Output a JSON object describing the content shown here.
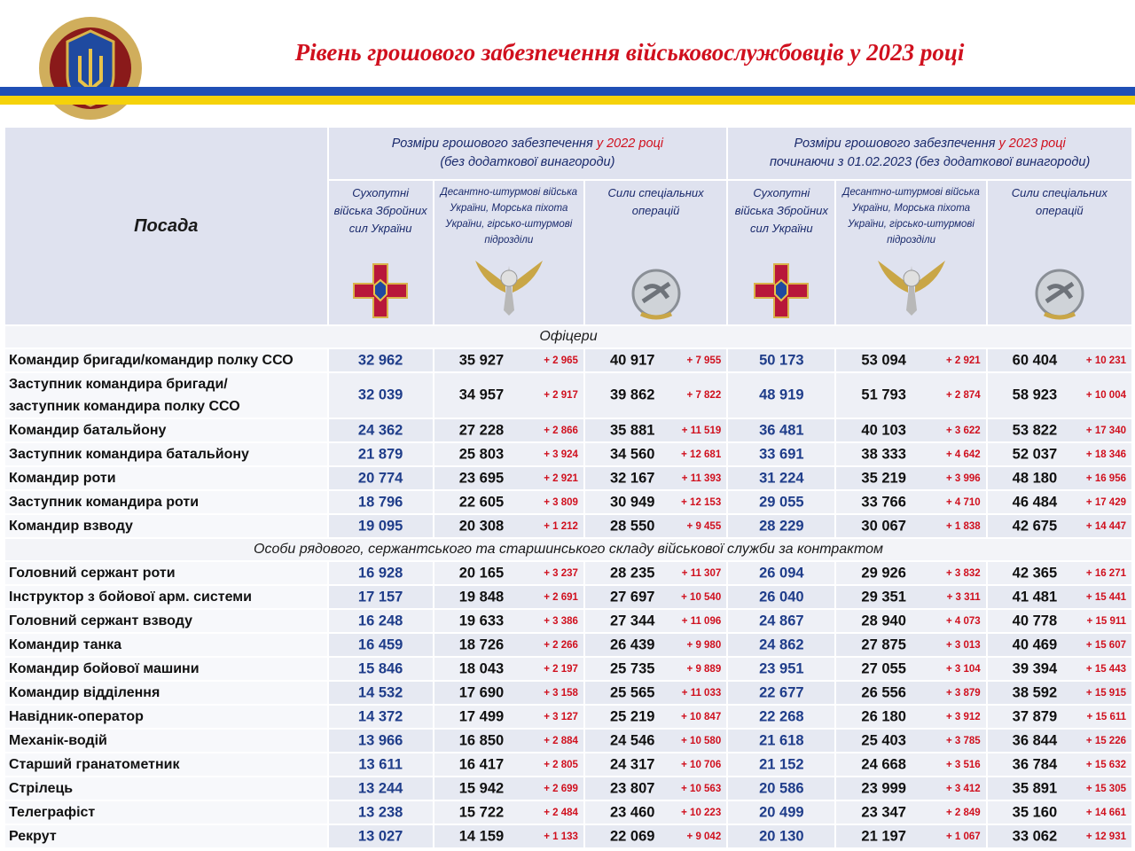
{
  "header": {
    "title": "Рівень грошового забезпечення військовослужбовців у 2023 році"
  },
  "table": {
    "position_header": "Посада",
    "group_2022": {
      "text": "Розміри грошового забезпечення",
      "year": "у 2022 році",
      "note": "(без додаткової винагороди)"
    },
    "group_2023": {
      "text": "Розміри грошового забезпечення",
      "year": "у 2023 році",
      "note": "починаючи з 01.02.2023 (без додаткової винагороди)"
    },
    "subcolumns_2022": [
      "Сухопутні війська Збройних сил України",
      "Десантно-штурмові війська України, Морська піхота України, гірсько-штурмові підрозділи",
      "Сили спеціальних операцій"
    ],
    "subcolumns_2023": [
      "Сухопутні війська Збройних сил України",
      "Десантно-штурмові війська України, Морська піхота України, гірсько-штурмові підрозділи",
      "Сили спеціальних операцій"
    ],
    "sections": [
      {
        "title": "Офіцери",
        "rows": [
          {
            "position": "Командир бригади/командир полку ССО",
            "cells": [
              "32 962",
              "35 927",
              "+ 2 965",
              "40 917",
              "+ 7 955",
              "50 173",
              "53 094",
              "+ 2 921",
              "60 404",
              "+ 10 231"
            ]
          },
          {
            "position": "Заступник командира бригади/\nзаступник командира полку ССО",
            "cells": [
              "32 039",
              "34 957",
              "+ 2 917",
              "39 862",
              "+ 7 822",
              "48 919",
              "51 793",
              "+ 2 874",
              "58 923",
              "+ 10 004"
            ]
          },
          {
            "position": "Командир батальйону",
            "cells": [
              "24 362",
              "27 228",
              "+ 2 866",
              "35 881",
              "+ 11 519",
              "36 481",
              "40 103",
              "+ 3 622",
              "53 822",
              "+ 17 340"
            ]
          },
          {
            "position": "Заступник командира батальйону",
            "cells": [
              "21 879",
              "25 803",
              "+ 3 924",
              "34 560",
              "+ 12 681",
              "33 691",
              "38 333",
              "+ 4 642",
              "52 037",
              "+ 18 346"
            ]
          },
          {
            "position": "Командир роти",
            "cells": [
              "20 774",
              "23 695",
              "+ 2 921",
              "32 167",
              "+ 11 393",
              "31 224",
              "35 219",
              "+ 3 996",
              "48 180",
              "+ 16 956"
            ]
          },
          {
            "position": "Заступник командира роти",
            "cells": [
              "18 796",
              "22 605",
              "+ 3 809",
              "30 949",
              "+ 12 153",
              "29 055",
              "33 766",
              "+ 4 710",
              "46 484",
              "+ 17 429"
            ]
          },
          {
            "position": "Командир взводу",
            "cells": [
              "19 095",
              "20 308",
              "+ 1 212",
              "28 550",
              "+ 9 455",
              "28 229",
              "30 067",
              "+ 1 838",
              "42 675",
              "+ 14 447"
            ]
          }
        ]
      },
      {
        "title": "Особи рядового, сержантського та старшинського складу військової служби за контрактом",
        "rows": [
          {
            "position": "Головний сержант роти",
            "cells": [
              "16 928",
              "20 165",
              "+ 3 237",
              "28 235",
              "+ 11 307",
              "26 094",
              "29 926",
              "+ 3 832",
              "42 365",
              "+ 16 271"
            ]
          },
          {
            "position": "Інструктор з бойової арм. системи",
            "cells": [
              "17 157",
              "19 848",
              "+ 2 691",
              "27 697",
              "+ 10 540",
              "26 040",
              "29 351",
              "+ 3 311",
              "41 481",
              "+ 15 441"
            ]
          },
          {
            "position": "Головний сержант взводу",
            "cells": [
              "16 248",
              "19 633",
              "+ 3 386",
              "27 344",
              "+ 11 096",
              "24 867",
              "28 940",
              "+ 4 073",
              "40 778",
              "+ 15 911"
            ]
          },
          {
            "position": "Командир танка",
            "cells": [
              "16 459",
              "18 726",
              "+ 2 266",
              "26 439",
              "+ 9 980",
              "24 862",
              "27 875",
              "+ 3 013",
              "40 469",
              "+ 15 607"
            ]
          },
          {
            "position": "Командир бойової машини",
            "cells": [
              "15 846",
              "18 043",
              "+ 2 197",
              "25 735",
              "+ 9 889",
              "23 951",
              "27 055",
              "+ 3 104",
              "39 394",
              "+ 15 443"
            ]
          },
          {
            "position": "Командир відділення",
            "cells": [
              "14 532",
              "17 690",
              "+ 3 158",
              "25 565",
              "+ 11 033",
              "22 677",
              "26 556",
              "+ 3 879",
              "38 592",
              "+ 15 915"
            ]
          },
          {
            "position": "Навідник-оператор",
            "cells": [
              "14 372",
              "17 499",
              "+ 3 127",
              "25 219",
              "+ 10 847",
              "22 268",
              "26 180",
              "+ 3 912",
              "37 879",
              "+ 15 611"
            ]
          },
          {
            "position": "Механік-водій",
            "cells": [
              "13 966",
              "16 850",
              "+ 2 884",
              "24 546",
              "+ 10 580",
              "21 618",
              "25 403",
              "+ 3 785",
              "36 844",
              "+ 15 226"
            ]
          },
          {
            "position": "Старший гранатометник",
            "cells": [
              "13 611",
              "16 417",
              "+ 2 805",
              "24 317",
              "+ 10 706",
              "21 152",
              "24 668",
              "+ 3 516",
              "36 784",
              "+ 15 632"
            ]
          },
          {
            "position": "Стрілець",
            "cells": [
              "13 244",
              "15 942",
              "+ 2 699",
              "23 807",
              "+ 10 563",
              "20 586",
              "23 999",
              "+ 3 412",
              "35 891",
              "+ 15 305"
            ]
          },
          {
            "position": "Телеграфіст",
            "cells": [
              "13 238",
              "15 722",
              "+ 2 484",
              "23 460",
              "+ 10 223",
              "20 499",
              "23 347",
              "+ 2 849",
              "35 160",
              "+ 14 661"
            ]
          },
          {
            "position": "Рекрут",
            "cells": [
              "13 027",
              "14 159",
              "+ 1 133",
              "22 069",
              "+ 9 042",
              "20 130",
              "21 197",
              "+ 1 067",
              "33 062",
              "+ 12 931"
            ]
          }
        ]
      }
    ]
  }
}
